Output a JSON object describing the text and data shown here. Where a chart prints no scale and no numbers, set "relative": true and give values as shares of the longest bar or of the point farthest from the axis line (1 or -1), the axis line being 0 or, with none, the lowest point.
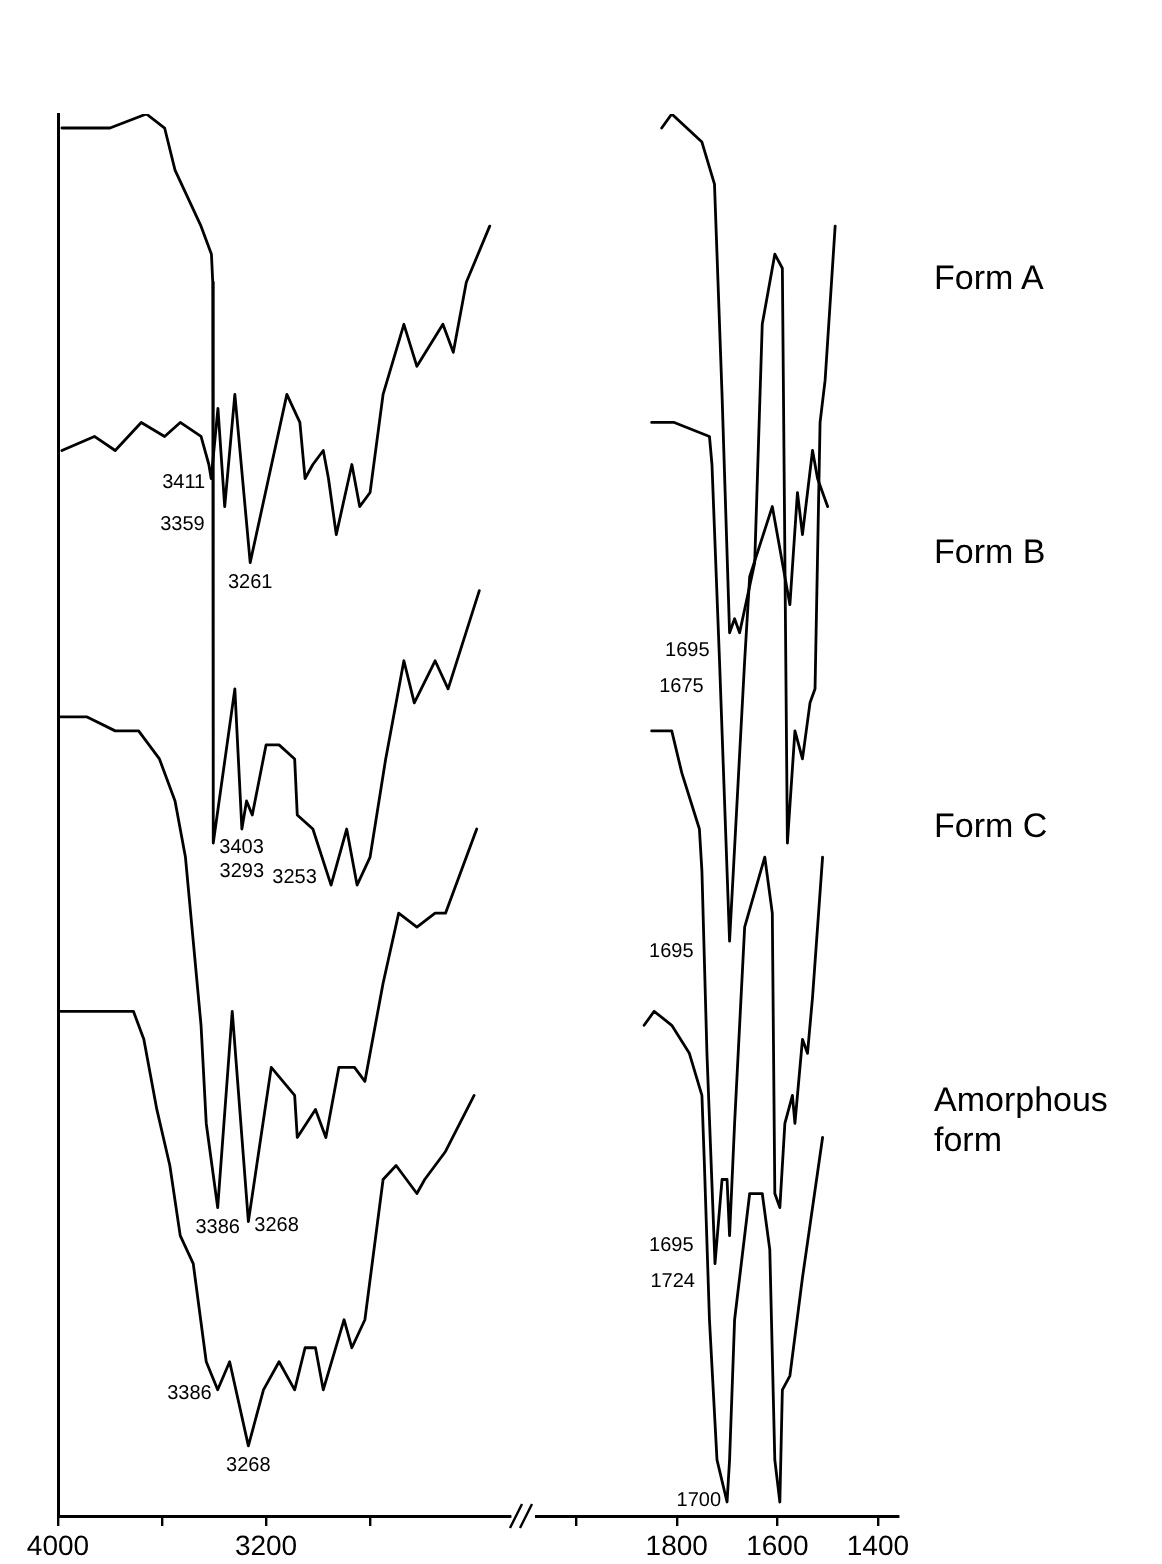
{
  "chart_data": [
    {
      "type": "line",
      "relative": true,
      "tick_labels": "x",
      "xlim": [
        4000,
        2262
      ],
      "xticks": [
        4000,
        {
          "value": 3600,
          "label": null
        },
        3200,
        {
          "value": 2800,
          "label": null
        }
      ],
      "series": [
        {
          "color": "#000000",
          "x": [
            3985,
            3800,
            3660,
            3590,
            3550,
            3450,
            3410,
            3405,
            3403,
            3320,
            3293,
            3275,
            3253,
            3200,
            3150,
            3090,
            3080,
            3020,
            2950,
            2890,
            2850,
            2800,
            2740,
            2670,
            2630,
            2550,
            2500,
            2380
          ],
          "values": [
            0.99,
            0.99,
            1.0,
            0.99,
            0.96,
            0.92,
            0.9,
            0.88,
            0.48,
            0.59,
            0.49,
            0.51,
            0.5,
            0.55,
            0.55,
            0.54,
            0.5,
            0.49,
            0.45,
            0.49,
            0.45,
            0.47,
            0.54,
            0.61,
            0.58,
            0.61,
            0.59,
            0.66
          ]
        },
        {
          "color": "#000000",
          "x": [
            3985,
            3860,
            3780,
            3680,
            3590,
            3530,
            3450,
            3420,
            3411,
            3385,
            3359,
            3320,
            3261,
            3120,
            3070,
            3050,
            3020,
            2980,
            2960,
            2930,
            2870,
            2840,
            2800,
            2750,
            2670,
            2620,
            2520,
            2480,
            2430,
            2340
          ],
          "values": [
            0.76,
            0.77,
            0.76,
            0.78,
            0.77,
            0.78,
            0.77,
            0.75,
            0.74,
            0.79,
            0.72,
            0.8,
            0.68,
            0.8,
            0.78,
            0.74,
            0.75,
            0.76,
            0.74,
            0.7,
            0.75,
            0.72,
            0.73,
            0.8,
            0.85,
            0.82,
            0.85,
            0.83,
            0.88,
            0.92
          ]
        },
        {
          "color": "#000000",
          "x": [
            3990,
            3890,
            3780,
            3690,
            3610,
            3550,
            3510,
            3480,
            3450,
            3430,
            3386,
            3330,
            3268,
            3180,
            3090,
            3080,
            3010,
            2970,
            2920,
            2890,
            2860,
            2820,
            2750,
            2690,
            2620,
            2550,
            2510,
            2390
          ],
          "values": [
            0.57,
            0.57,
            0.56,
            0.56,
            0.54,
            0.51,
            0.47,
            0.41,
            0.35,
            0.28,
            0.22,
            0.36,
            0.21,
            0.32,
            0.3,
            0.27,
            0.29,
            0.27,
            0.32,
            0.32,
            0.32,
            0.31,
            0.38,
            0.43,
            0.42,
            0.43,
            0.43,
            0.49
          ]
        },
        {
          "color": "#000000",
          "x": [
            3990,
            3840,
            3710,
            3670,
            3620,
            3570,
            3530,
            3480,
            3430,
            3386,
            3340,
            3268,
            3210,
            3150,
            3090,
            3050,
            3010,
            2980,
            2900,
            2870,
            2820,
            2750,
            2700,
            2620,
            2590,
            2550,
            2510,
            2400
          ],
          "values": [
            0.36,
            0.36,
            0.36,
            0.34,
            0.29,
            0.25,
            0.2,
            0.18,
            0.11,
            0.09,
            0.11,
            0.05,
            0.09,
            0.11,
            0.09,
            0.12,
            0.12,
            0.09,
            0.14,
            0.12,
            0.14,
            0.24,
            0.25,
            0.23,
            0.24,
            0.25,
            0.26,
            0.3
          ]
        }
      ],
      "annotations": [
        {
          "text": "3411",
          "x": 3411,
          "y": 0.74
        },
        {
          "text": "3359",
          "x": 3359,
          "y": 0.72
        },
        {
          "text": "3261",
          "x": 3261,
          "y": 0.68
        },
        {
          "text": "3403",
          "x": 3403,
          "y": 0.48
        },
        {
          "text": "3293",
          "x": 3293,
          "y": 0.49
        },
        {
          "text": "3253",
          "x": 3253,
          "y": 0.5
        },
        {
          "text": "3386",
          "x": 3386,
          "y": 0.22
        },
        {
          "text": "3268",
          "x": 3268,
          "y": 0.21
        },
        {
          "text": "3386",
          "x": 3386,
          "y": 0.09
        },
        {
          "text": "3268",
          "x": 3268,
          "y": 0.05
        }
      ]
    },
    {
      "type": "line",
      "relative": true,
      "tick_labels": "x",
      "xlim": [
        2080,
        1360
      ],
      "xticks": [
        {
          "value": 2000,
          "label": null
        },
        1800,
        1600,
        1400
      ],
      "series": [
        {
          "color": "#000000",
          "x": [
            1830,
            1810,
            1750,
            1725,
            1710,
            1695,
            1685,
            1675,
            1645,
            1630,
            1605,
            1590,
            1580,
            1565,
            1550,
            1535,
            1525,
            1515,
            1505,
            1485
          ],
          "values": [
            0.99,
            1.0,
            0.98,
            0.95,
            0.8,
            0.63,
            0.64,
            0.63,
            0.68,
            0.85,
            0.9,
            0.89,
            0.48,
            0.56,
            0.54,
            0.58,
            0.59,
            0.78,
            0.81,
            0.92
          ]
        },
        {
          "color": "#000000",
          "x": [
            1850,
            1805,
            1735,
            1730,
            1715,
            1695,
            1665,
            1655,
            1610,
            1575,
            1560,
            1550,
            1530,
            1520,
            1500
          ],
          "values": [
            0.78,
            0.78,
            0.77,
            0.75,
            0.61,
            0.41,
            0.61,
            0.67,
            0.72,
            0.65,
            0.73,
            0.7,
            0.76,
            0.74,
            0.72
          ]
        },
        {
          "color": "#000000",
          "x": [
            1850,
            1810,
            1790,
            1755,
            1750,
            1740,
            1724,
            1710,
            1700,
            1695,
            1685,
            1665,
            1625,
            1610,
            1605,
            1595,
            1585,
            1570,
            1565,
            1550,
            1540,
            1530,
            1510
          ],
          "values": [
            0.56,
            0.56,
            0.53,
            0.49,
            0.46,
            0.33,
            0.18,
            0.24,
            0.24,
            0.2,
            0.28,
            0.42,
            0.47,
            0.43,
            0.23,
            0.22,
            0.28,
            0.3,
            0.28,
            0.34,
            0.33,
            0.37,
            0.47
          ]
        },
        {
          "color": "#000000",
          "x": [
            1865,
            1845,
            1810,
            1775,
            1750,
            1745,
            1735,
            1720,
            1700,
            1695,
            1685,
            1655,
            1630,
            1615,
            1605,
            1595,
            1590,
            1575,
            1550,
            1510
          ],
          "values": [
            0.35,
            0.36,
            0.35,
            0.33,
            0.3,
            0.25,
            0.14,
            0.04,
            0.01,
            0.04,
            0.14,
            0.23,
            0.23,
            0.19,
            0.04,
            0.01,
            0.09,
            0.1,
            0.17,
            0.27
          ]
        }
      ],
      "annotations": [
        {
          "text": "1695",
          "x": 1695,
          "y": 0.63
        },
        {
          "text": "1675",
          "x": 1675,
          "y": 0.63
        },
        {
          "text": "1695",
          "x": 1695,
          "y": 0.41
        },
        {
          "text": "1724",
          "x": 1724,
          "y": 0.18
        },
        {
          "text": "1695",
          "x": 1695,
          "y": 0.2
        },
        {
          "text": "1700",
          "x": 1700,
          "y": 0.01
        },
        "Form A",
        "Form B",
        "Form C",
        "Amorphous form"
      ]
    }
  ]
}
